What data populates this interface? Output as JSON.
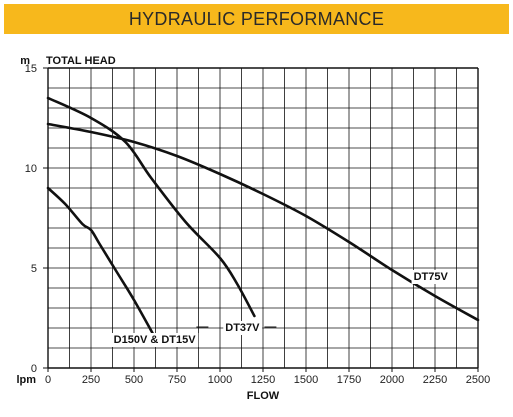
{
  "header": {
    "title": "HYDRAULIC PERFORMANCE"
  },
  "colors": {
    "banner": "#f7b81c",
    "curve": "#111111",
    "grid": "#111111"
  },
  "chart_data": {
    "type": "line",
    "title": "HYDRAULIC PERFORMANCE",
    "xlabel": "FLOW",
    "ylabel": "TOTAL HEAD",
    "xunit": "lpm",
    "yunit": "m",
    "xlim": [
      0,
      2500
    ],
    "ylim": [
      0,
      15
    ],
    "xticks": [
      0,
      250,
      500,
      750,
      1000,
      1250,
      1500,
      1750,
      2000,
      2250,
      2500
    ],
    "yticks": [
      0,
      5,
      10,
      15
    ],
    "grid": true,
    "series": [
      {
        "name": "DT75V",
        "x": [
          0,
          250,
          500,
          750,
          1000,
          1250,
          1500,
          1750,
          2000,
          2250,
          2500
        ],
        "y": [
          12.2,
          11.8,
          11.3,
          10.6,
          9.7,
          8.7,
          7.6,
          6.3,
          4.9,
          3.6,
          2.4
        ]
      },
      {
        "name": "DT37V",
        "x": [
          0,
          250,
          450,
          600,
          800,
          1000,
          1100,
          1200
        ],
        "y": [
          13.5,
          12.5,
          11.3,
          9.5,
          7.3,
          5.5,
          4.2,
          2.6
        ]
      },
      {
        "name": "D150V & DT15V",
        "x": [
          0,
          100,
          200,
          250,
          300,
          400,
          500,
          630
        ],
        "y": [
          9.0,
          8.2,
          7.2,
          6.9,
          6.2,
          4.8,
          3.4,
          1.4
        ]
      }
    ]
  }
}
